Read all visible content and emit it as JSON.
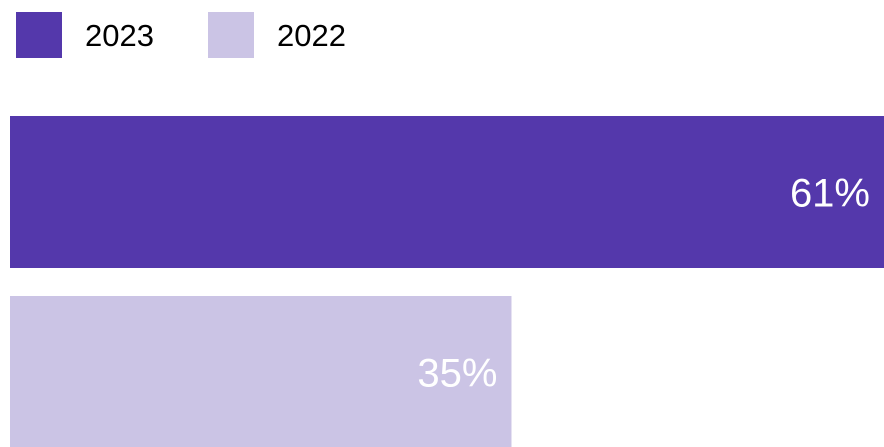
{
  "chart_data": {
    "type": "bar",
    "orientation": "horizontal",
    "categories": [
      null
    ],
    "series": [
      {
        "name": "2023",
        "color": "#5438ab",
        "values": [
          61
        ],
        "value_labels": [
          "61%"
        ]
      },
      {
        "name": "2022",
        "color": "#cbc4e5",
        "values": [
          35
        ],
        "value_labels": [
          "35%"
        ]
      }
    ],
    "legend": "top-left"
  }
}
